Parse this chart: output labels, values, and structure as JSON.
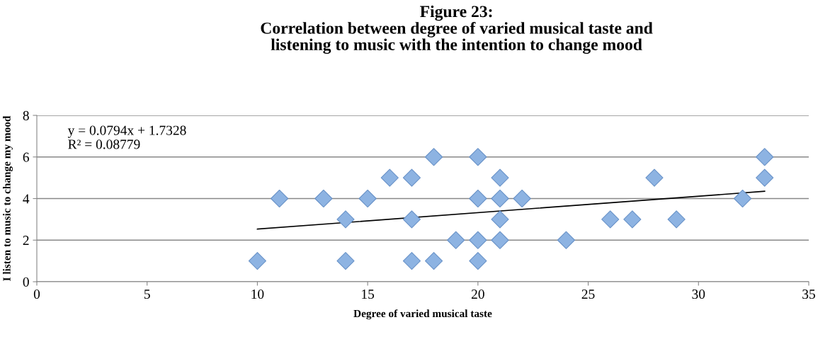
{
  "chart_data": {
    "type": "scatter",
    "title": "Figure 23:\nCorrelation between degree of varied musical taste and\nlistening to music with the intention to change mood",
    "xlabel": "Degree of varied musical taste",
    "ylabel": "I listen to music to change my mood",
    "annotations": [
      "y = 0.0794x + 1.7328\nR² = 0.08779"
    ],
    "series": [
      {
        "color": "#8db3e2",
        "marker": "diamond",
        "x": [
          10,
          11,
          13,
          14,
          14,
          15,
          16,
          17,
          17,
          17,
          18,
          18,
          19,
          20,
          20,
          20,
          20,
          21,
          21,
          21,
          21,
          22,
          24,
          26,
          27,
          28,
          29,
          32,
          33,
          33
        ],
        "values": [
          1,
          4,
          4,
          3,
          1,
          4,
          5,
          5,
          3,
          1,
          6,
          1,
          2,
          6,
          4,
          2,
          1,
          5,
          4,
          3,
          2,
          4,
          2,
          3,
          3,
          5,
          3,
          4,
          6,
          5
        ]
      },
      {
        "type": "line",
        "color": "#000000",
        "marker": "none",
        "line_style": "solid",
        "x": [
          10,
          33
        ],
        "values": [
          2.53,
          4.35
        ]
      }
    ],
    "xlim": [
      0,
      35
    ],
    "xticks": [
      0,
      5,
      10,
      15,
      20,
      25,
      30,
      35
    ],
    "ylim": [
      0,
      8
    ],
    "yticks": [
      0,
      2,
      4,
      6,
      8
    ],
    "grid": "y"
  }
}
